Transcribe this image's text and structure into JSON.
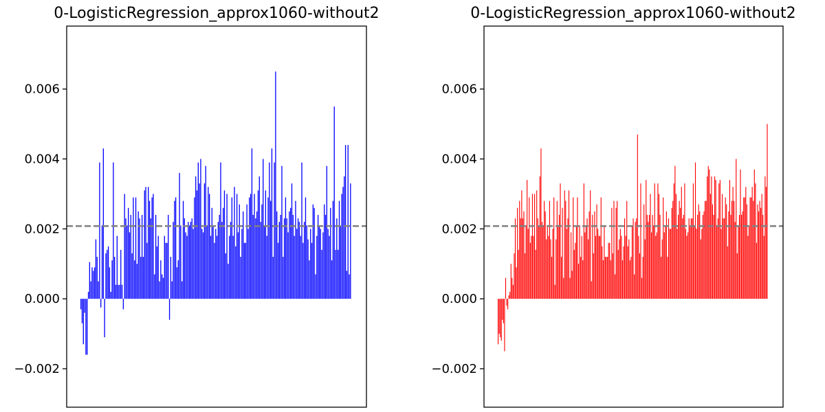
{
  "figure": {
    "background": "#ffffff",
    "baseline_color": "#808080"
  },
  "chart_data": [
    {
      "type": "bar",
      "title": "0-LogisticRegression_approx1060-without2",
      "color": "#0000ff",
      "ylim": [
        -0.0031,
        0.0078
      ],
      "yticks": [
        -0.002,
        0.0,
        0.002,
        0.004,
        0.006
      ],
      "ytick_labels": [
        "−0.002",
        "0.000",
        "0.002",
        "0.004",
        "0.006"
      ],
      "xticks": false,
      "grid": false,
      "reference_line": {
        "y": 0.00208,
        "style": "dashed"
      },
      "values": [
        -0.0003,
        -0.0007,
        -0.0013,
        -0.0004,
        -0.0016,
        -0.0016,
        0.0002,
        0.00105,
        0.0005,
        0.0009,
        0.0008,
        0.0009,
        0.0017,
        0.0012,
        0.0005,
        0.0039,
        -0.00025,
        0.0021,
        0.0043,
        -0.0011,
        0.0013,
        0.0014,
        0.0015,
        0.0009,
        0.0002,
        0.0011,
        0.0039,
        0.0012,
        0.0004,
        0.0018,
        0.0004,
        0.0004,
        0.0014,
        0.0004,
        -0.0003,
        0.003,
        0.0023,
        0.0021,
        0.0026,
        0.0019,
        0.0024,
        0.0013,
        0.0029,
        0.0011,
        0.0029,
        0.001,
        0.0025,
        0.0023,
        0.0012,
        0.0024,
        0.0012,
        0.0031,
        0.0032,
        0.0016,
        0.0032,
        0.0028,
        0.0023,
        0.0029,
        0.003,
        0.0007,
        0.0024,
        0.0015,
        0.0018,
        0.0005,
        0.0011,
        0.0007,
        0.0006,
        0.0018,
        0.0016,
        0.0016,
        0.0024,
        -0.0006,
        0.0012,
        0.0005,
        0.0022,
        0.0028,
        0.0029,
        0.0009,
        0.0011,
        0.0036,
        0.0021,
        0.0005,
        0.0028,
        0.0023,
        0.0019,
        0.0018,
        0.0022,
        0.0021,
        0.0022,
        0.0023,
        0.002,
        0.0029,
        0.0035,
        0.0031,
        0.0039,
        0.0033,
        0.004,
        0.002,
        0.0019,
        0.0033,
        0.0038,
        0.0021,
        0.0032,
        0.003,
        0.0018,
        0.0026,
        0.0021,
        0.0016,
        0.002,
        0.0018,
        0.0022,
        0.0024,
        0.0039,
        0.0022,
        0.0026,
        0.0031,
        0.0013,
        0.003,
        0.001,
        0.0018,
        0.0022,
        0.0029,
        0.0018,
        0.0032,
        0.0015,
        0.003,
        0.0019,
        0.0027,
        0.0012,
        0.002,
        0.0025,
        0.0016,
        0.0016,
        0.0027,
        0.002,
        0.0029,
        0.003,
        0.0043,
        0.0024,
        0.003,
        0.0023,
        0.0025,
        0.0031,
        0.0035,
        0.0022,
        0.0027,
        0.004,
        0.0021,
        0.0031,
        0.0018,
        0.0029,
        0.0039,
        0.0028,
        0.0043,
        0.0012,
        0.0039,
        0.0065,
        0.0025,
        0.0016,
        0.0022,
        0.0024,
        0.0038,
        0.0012,
        0.0023,
        0.0029,
        0.0023,
        0.0019,
        0.0025,
        0.0026,
        0.0033,
        0.0024,
        0.0018,
        0.0028,
        0.002,
        0.0023,
        0.0022,
        0.0018,
        0.0039,
        0.0016,
        0.0022,
        0.0029,
        0.0021,
        0.0017,
        0.0011,
        0.002,
        0.0016,
        0.0027,
        0.0026,
        0.0007,
        0.0018,
        0.0024,
        0.0021,
        0.002,
        0.0014,
        0.0019,
        0.0027,
        0.0024,
        0.0038,
        0.002,
        0.0018,
        0.0026,
        0.0011,
        0.0028,
        0.0055,
        0.0014,
        0.0023,
        0.0014,
        0.0028,
        0.0021,
        0.003,
        0.0032,
        0.0035,
        0.0044,
        0.0008,
        0.0044,
        0.0007,
        0.0033
      ]
    },
    {
      "type": "bar",
      "title": "0-LogisticRegression_approx1060-without2",
      "color": "#ff0000",
      "ylim": [
        -0.0031,
        0.0078
      ],
      "yticks": [
        -0.002,
        0.0,
        0.002,
        0.004,
        0.006
      ],
      "ytick_labels": [
        "−0.002",
        "0.000",
        "0.002",
        "0.004",
        "0.006"
      ],
      "xticks": false,
      "grid": false,
      "reference_line": {
        "y": 0.00208,
        "style": "dashed"
      },
      "values": [
        -0.0013,
        -0.001,
        -0.0011,
        -0.0012,
        -0.0006,
        -0.0007,
        -0.0015,
        0.0006,
        -0.0002,
        -0.0003,
        0.0001,
        0.0002,
        0.001,
        0.0006,
        0.0004,
        0.0013,
        0.0023,
        0.0009,
        0.0026,
        0.0014,
        0.0028,
        0.0023,
        0.0031,
        0.0023,
        0.0025,
        0.0013,
        0.0021,
        0.0034,
        0.002,
        0.0029,
        0.0016,
        0.0018,
        0.003,
        0.0018,
        0.003,
        0.0014,
        0.0031,
        0.0023,
        0.0021,
        0.0035,
        0.0043,
        0.0022,
        0.0021,
        0.0028,
        0.0025,
        0.0017,
        0.0021,
        0.0018,
        0.0028,
        0.0017,
        0.0012,
        0.002,
        0.0029,
        0.0004,
        0.0017,
        0.0028,
        0.0021,
        0.0024,
        0.0033,
        0.0012,
        0.0026,
        0.0006,
        0.0031,
        0.0028,
        0.002,
        0.0023,
        0.0031,
        0.0006,
        0.0019,
        0.0008,
        0.0029,
        0.0014,
        0.0016,
        0.0021,
        0.0029,
        0.001,
        0.0021,
        0.0012,
        0.0018,
        0.0011,
        0.0033,
        0.0019,
        0.0021,
        0.0023,
        0.0017,
        0.0025,
        0.0031,
        0.0005,
        0.0024,
        0.0013,
        0.0025,
        0.0018,
        0.0027,
        0.002,
        0.0018,
        0.0018,
        0.0029,
        0.0015,
        0.0011,
        0.0021,
        0.0012,
        0.0012,
        0.0012,
        0.0016,
        0.0016,
        0.0011,
        0.0026,
        0.0013,
        0.0028,
        0.0007,
        0.0026,
        0.0028,
        0.0014,
        0.0017,
        0.002,
        0.0018,
        0.0011,
        0.0015,
        0.0023,
        0.0018,
        0.0028,
        0.0015,
        0.0017,
        0.0011,
        0.0012,
        0.0021,
        0.0023,
        0.0007,
        0.0022,
        0.0023,
        0.0047,
        0.0018,
        0.0013,
        0.0033,
        0.0006,
        0.0012,
        0.0027,
        0.0017,
        0.0034,
        0.0024,
        0.0022,
        0.0024,
        0.003,
        0.0019,
        0.0024,
        0.0021,
        0.0033,
        0.0018,
        0.0019,
        0.0033,
        0.003,
        0.0024,
        0.0012,
        0.0017,
        0.0029,
        0.0019,
        0.0021,
        0.0025,
        0.0012,
        0.0023,
        0.002,
        0.002,
        0.0026,
        0.0028,
        0.0033,
        0.0038,
        0.003,
        0.002,
        0.0024,
        0.0028,
        0.0026,
        0.0032,
        0.0023,
        0.0024,
        0.0033,
        0.002,
        0.0018,
        0.0019,
        0.0023,
        0.0021,
        0.0023,
        0.0023,
        0.0033,
        0.0021,
        0.0039,
        0.002,
        0.0024,
        0.0027,
        0.0025,
        0.0017,
        0.002,
        0.0024,
        0.0025,
        0.0028,
        0.0028,
        0.0035,
        0.0038,
        0.0037,
        0.003,
        0.0035,
        0.0027,
        0.0024,
        0.0035,
        0.0034,
        0.0021,
        0.0023,
        0.0033,
        0.0034,
        0.002,
        0.003,
        0.0023,
        0.0023,
        0.0029,
        0.0027,
        0.0015,
        0.0025,
        0.0034,
        0.0024,
        0.0028,
        0.0032,
        0.0028,
        0.0022,
        0.004,
        0.0013,
        0.0021,
        0.0024,
        0.0037,
        0.0024,
        0.0025,
        0.0029,
        0.0029,
        0.0032,
        0.0027,
        0.0018,
        0.0021,
        0.0029,
        0.0029,
        0.0032,
        0.0028,
        0.0037,
        0.0033,
        0.0016,
        0.0027,
        0.0025,
        0.0028,
        0.0026,
        0.003,
        0.0024,
        0.0018,
        0.0035,
        0.0032,
        0.005
      ]
    }
  ]
}
